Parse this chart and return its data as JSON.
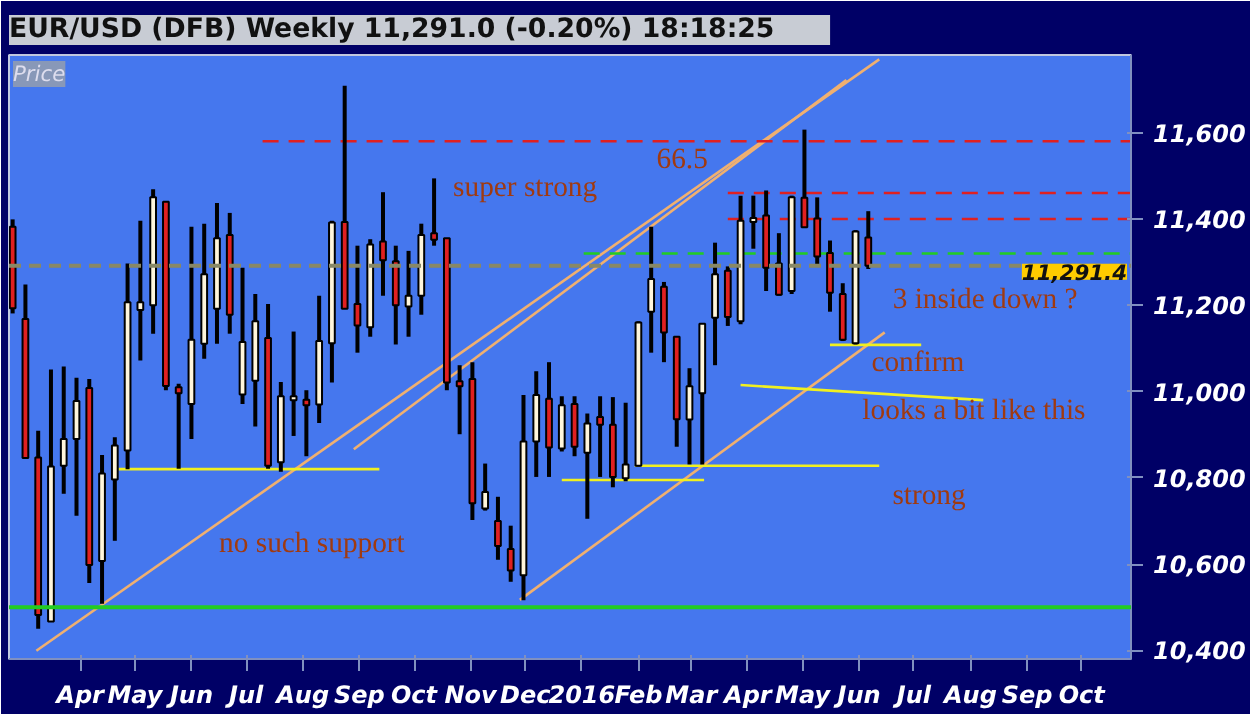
{
  "chart_data": {
    "type": "candlestick",
    "title": "EUR/USD (DFB)   Weekly   11,291.0 (-0.20%)   18:18:25",
    "ylabel": "Price",
    "x": [
      "2015-02-23",
      "2015-03-02",
      "2015-03-09",
      "2015-03-16",
      "2015-03-23",
      "2015-03-30",
      "2015-04-06",
      "2015-04-13",
      "2015-04-20",
      "2015-04-27",
      "2015-05-04",
      "2015-05-11",
      "2015-05-18",
      "2015-05-25",
      "2015-06-01",
      "2015-06-08",
      "2015-06-15",
      "2015-06-22",
      "2015-06-29",
      "2015-07-06",
      "2015-07-13",
      "2015-07-20",
      "2015-07-27",
      "2015-08-03",
      "2015-08-10",
      "2015-08-17",
      "2015-08-24",
      "2015-08-31",
      "2015-09-07",
      "2015-09-14",
      "2015-09-21",
      "2015-09-28",
      "2015-10-05",
      "2015-10-12",
      "2015-10-19",
      "2015-10-26",
      "2015-11-02",
      "2015-11-09",
      "2015-11-16",
      "2015-11-23",
      "2015-11-30",
      "2015-12-07",
      "2015-12-14",
      "2015-12-21",
      "2015-12-28",
      "2016-01-04",
      "2016-01-11",
      "2016-01-18",
      "2016-01-25",
      "2016-02-01",
      "2016-02-08",
      "2016-02-15",
      "2016-02-22",
      "2016-02-29",
      "2016-03-07",
      "2016-03-14",
      "2016-03-21",
      "2016-03-28",
      "2016-04-04",
      "2016-04-11",
      "2016-04-18",
      "2016-04-25",
      "2016-05-02",
      "2016-05-09",
      "2016-05-16",
      "2016-05-23",
      "2016-05-30",
      "2016-06-06"
    ],
    "ohlc": [
      [
        11382,
        11399,
        11181,
        11193
      ],
      [
        11168,
        11248,
        10846,
        10846
      ],
      [
        10847,
        10909,
        10450,
        10482
      ],
      [
        10467,
        11051,
        10467,
        10826
      ],
      [
        10828,
        11058,
        10763,
        10890
      ],
      [
        10890,
        11032,
        10712,
        10978
      ],
      [
        11008,
        11029,
        10556,
        10598
      ],
      [
        10607,
        10853,
        10508,
        10810
      ],
      [
        10796,
        10894,
        10654,
        10875
      ],
      [
        10863,
        11297,
        10820,
        11207
      ],
      [
        11189,
        11396,
        11072,
        11207
      ],
      [
        11200,
        11469,
        11134,
        11450
      ],
      [
        11440,
        11440,
        11003,
        11013
      ],
      [
        11010,
        11018,
        10821,
        10996
      ],
      [
        10971,
        11382,
        10890,
        11120
      ],
      [
        11111,
        11389,
        11076,
        11272
      ],
      [
        11192,
        11437,
        11111,
        11355
      ],
      [
        11363,
        11414,
        11134,
        11178
      ],
      [
        10993,
        11287,
        10971,
        11115
      ],
      [
        11025,
        11226,
        10919,
        11163
      ],
      [
        11124,
        11203,
        10821,
        10828
      ],
      [
        10836,
        11022,
        10814,
        10989
      ],
      [
        10980,
        11139,
        10897,
        10989
      ],
      [
        10981,
        11003,
        10850,
        10968
      ],
      [
        10970,
        11222,
        10927,
        11117
      ],
      [
        11112,
        11396,
        11021,
        11392
      ],
      [
        11393,
        11709,
        11192,
        11192
      ],
      [
        11203,
        11338,
        11090,
        11153
      ],
      [
        11149,
        11353,
        11127,
        11341
      ],
      [
        11348,
        11462,
        11222,
        11304
      ],
      [
        11302,
        11338,
        11109,
        11200
      ],
      [
        11197,
        11326,
        11127,
        11222
      ],
      [
        11222,
        11389,
        11178,
        11363
      ],
      [
        11367,
        11494,
        11338,
        11352
      ],
      [
        11355,
        11355,
        11003,
        11021
      ],
      [
        11024,
        11061,
        10901,
        11012
      ],
      [
        11029,
        11068,
        10702,
        10741
      ],
      [
        10729,
        10833,
        10724,
        10767
      ],
      [
        10700,
        10756,
        10610,
        10642
      ],
      [
        10635,
        10689,
        10559,
        10585
      ],
      [
        10574,
        10992,
        10516,
        10884
      ],
      [
        10884,
        11047,
        10802,
        10992
      ],
      [
        10983,
        11068,
        10802,
        10870
      ],
      [
        10868,
        10989,
        10861,
        10968
      ],
      [
        10971,
        10989,
        10850,
        10872
      ],
      [
        10858,
        10949,
        10705,
        10926
      ],
      [
        10941,
        10989,
        10802,
        10923
      ],
      [
        10923,
        10987,
        10778,
        10802
      ],
      [
        10799,
        10974,
        10792,
        10831
      ],
      [
        10828,
        11163,
        10826,
        11160
      ],
      [
        11185,
        11382,
        11090,
        11261
      ],
      [
        11243,
        11254,
        11068,
        11137
      ],
      [
        11127,
        11127,
        10872,
        10936
      ],
      [
        10935,
        11054,
        10831,
        11012
      ],
      [
        10996,
        11159,
        10831,
        11157
      ],
      [
        11171,
        11345,
        11061,
        11272
      ],
      [
        11280,
        11290,
        11152,
        11173
      ],
      [
        11163,
        11454,
        11156,
        11396
      ],
      [
        11393,
        11454,
        11331,
        11402
      ],
      [
        11408,
        11466,
        11233,
        11287
      ],
      [
        11297,
        11367,
        11222,
        11224
      ],
      [
        11233,
        11454,
        11226,
        11450
      ],
      [
        11449,
        11607,
        11380,
        11381
      ],
      [
        11401,
        11450,
        11290,
        11313
      ],
      [
        11321,
        11350,
        11185,
        11229
      ],
      [
        11226,
        11251,
        11117,
        11120
      ],
      [
        11112,
        11374,
        11109,
        11371
      ],
      [
        11357,
        11418,
        11284,
        11291.4
      ]
    ],
    "series": [
      {
        "type": "line",
        "color": "#f0b070",
        "line_style": "solid",
        "x": [
          "2015-03-08",
          "2016-06-12"
        ],
        "values": [
          10399,
          11770
        ]
      },
      {
        "type": "line",
        "color": "#f0b070",
        "line_style": "solid",
        "x": [
          "2015-08-29",
          "2016-05-25"
        ],
        "values": [
          10866,
          11722
        ]
      },
      {
        "type": "line",
        "color": "#f0b070",
        "line_style": "solid",
        "x": [
          "2015-11-28",
          "2016-06-15"
        ],
        "values": [
          10517,
          11137
        ]
      },
      {
        "type": "line",
        "color": "#e02020",
        "line_style": "dashed",
        "x": [
          "2015-07-10",
          "2016-10-28"
        ],
        "values": [
          11580,
          11580
        ]
      },
      {
        "type": "line",
        "color": "#e02020",
        "line_style": "dashed",
        "x": [
          "2016-03-21",
          "2016-10-28"
        ],
        "values": [
          11460,
          11460
        ]
      },
      {
        "type": "line",
        "color": "#e02020",
        "line_style": "dashed",
        "x": [
          "2016-03-21",
          "2016-10-28"
        ],
        "values": [
          11400,
          11400
        ]
      },
      {
        "type": "line",
        "color": "#22cc22",
        "line_style": "dashed",
        "x": [
          "2016-01-02",
          "2016-10-28"
        ],
        "values": [
          11320,
          11320
        ]
      },
      {
        "type": "line",
        "color": "#f0f020",
        "line_style": "solid",
        "x": [
          "2015-04-22",
          "2015-09-12"
        ],
        "values": [
          10820,
          10820
        ]
      },
      {
        "type": "line",
        "color": "#f0f020",
        "line_style": "solid",
        "x": [
          "2016-01-30",
          "2016-06-12"
        ],
        "values": [
          10828,
          10828
        ]
      },
      {
        "type": "line",
        "color": "#f0f020",
        "line_style": "solid",
        "x": [
          "2015-12-21",
          "2016-03-08"
        ],
        "values": [
          10795,
          10795
        ]
      },
      {
        "type": "line",
        "color": "#f0f020",
        "line_style": "solid",
        "x": [
          "2016-05-16",
          "2016-07-05"
        ],
        "values": [
          11108,
          11108
        ]
      },
      {
        "type": "line",
        "color": "#f0f020",
        "line_style": "solid",
        "x": [
          "2016-03-28",
          "2016-08-08"
        ],
        "values": [
          11015,
          10980
        ]
      }
    ],
    "ref_lines": [
      {
        "axis": "y",
        "value": 10500,
        "color": "#22cc22",
        "line_style": "solid",
        "label": null
      },
      {
        "axis": "y",
        "value": 11291.4,
        "color": "#888866",
        "line_style": "dashed",
        "label": "11,291.4"
      }
    ],
    "annotations": [
      "super strong",
      "no such support",
      "strong",
      "looks a bit like this",
      "confirm",
      "3 inside down ?",
      "66.5"
    ],
    "xlim": [
      "2015-02-21",
      "2016-10-28"
    ],
    "xticks": [
      {
        "value": "2015-04-01",
        "label": "Apr"
      },
      {
        "value": "2015-05-01",
        "label": "May"
      },
      {
        "value": "2015-06-01",
        "label": "Jun"
      },
      {
        "value": "2015-07-01",
        "label": "Jul"
      },
      {
        "value": "2015-08-01",
        "label": "Aug"
      },
      {
        "value": "2015-09-01",
        "label": "Sep"
      },
      {
        "value": "2015-10-01",
        "label": "Oct"
      },
      {
        "value": "2015-11-01",
        "label": "Nov"
      },
      {
        "value": "2015-12-01",
        "label": "Dec"
      },
      {
        "value": "2016-01-01",
        "label": "2016"
      },
      {
        "value": "2016-02-01",
        "label": "Feb"
      },
      {
        "value": "2016-03-01",
        "label": "Mar"
      },
      {
        "value": "2016-04-01",
        "label": "Apr"
      },
      {
        "value": "2016-05-01",
        "label": "May"
      },
      {
        "value": "2016-06-01",
        "label": "Jun"
      },
      {
        "value": "2016-07-01",
        "label": "Jul"
      },
      {
        "value": "2016-08-01",
        "label": "Aug"
      },
      {
        "value": "2016-09-01",
        "label": "Sep"
      },
      {
        "value": "2016-10-01",
        "label": "Oct"
      }
    ],
    "ylim": [
      10380,
      11780
    ],
    "yticks": [
      {
        "value": 10400,
        "label": "10,400"
      },
      {
        "value": 10600,
        "label": "10,600"
      },
      {
        "value": 10800,
        "label": "10,800"
      },
      {
        "value": 11000,
        "label": "11,000"
      },
      {
        "value": 11200,
        "label": "11,200"
      },
      {
        "value": 11400,
        "label": "11,400"
      },
      {
        "value": 11600,
        "label": "11,600"
      }
    ]
  }
}
